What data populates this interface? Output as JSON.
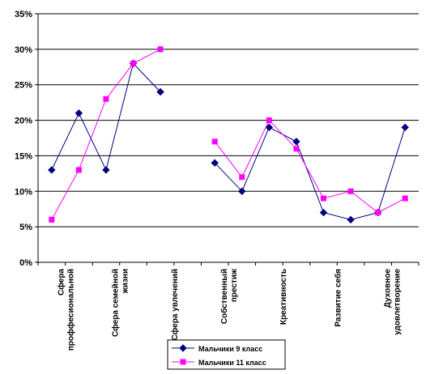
{
  "chart_data": {
    "type": "line",
    "x": [
      1,
      2,
      3,
      4,
      5,
      6,
      7,
      8,
      9,
      10,
      11,
      12,
      13,
      14
    ],
    "category_labels": [
      {
        "x": 1.5,
        "lines": [
          "Сфера",
          "проффесиональной"
        ]
      },
      {
        "x": 3.5,
        "lines": [
          "Сфера семейной",
          "жизни"
        ]
      },
      {
        "x": 5.5,
        "lines": [
          "Сфера увлечений"
        ]
      },
      {
        "x": 7.5,
        "lines": [
          "Собственный",
          "престиж"
        ]
      },
      {
        "x": 9.5,
        "lines": [
          "Креативность"
        ]
      },
      {
        "x": 11.5,
        "lines": [
          "Развитие себя"
        ]
      },
      {
        "x": 13.5,
        "lines": [
          "Духовное",
          "удовлетворение"
        ]
      }
    ],
    "series": [
      {
        "name": "Мальчики 9 класс",
        "color": "#000080",
        "marker": "diamond",
        "values": [
          13,
          21,
          13,
          28,
          24,
          null,
          14,
          10,
          19,
          17,
          7,
          6,
          7,
          19
        ]
      },
      {
        "name": "Мальчики 11 класс",
        "color": "#ff00ff",
        "marker": "square",
        "values": [
          6,
          13,
          23,
          28,
          30,
          null,
          17,
          12,
          20,
          16,
          9,
          10,
          7,
          9
        ]
      }
    ],
    "ylim": [
      0,
      35
    ],
    "yticks": [
      "0%",
      "5%",
      "10%",
      "15%",
      "20%",
      "25%",
      "30%",
      "35%"
    ],
    "ytick_values": [
      0,
      5,
      10,
      15,
      20,
      25,
      30,
      35
    ],
    "grid": true,
    "legend_position": "bottom-center"
  }
}
